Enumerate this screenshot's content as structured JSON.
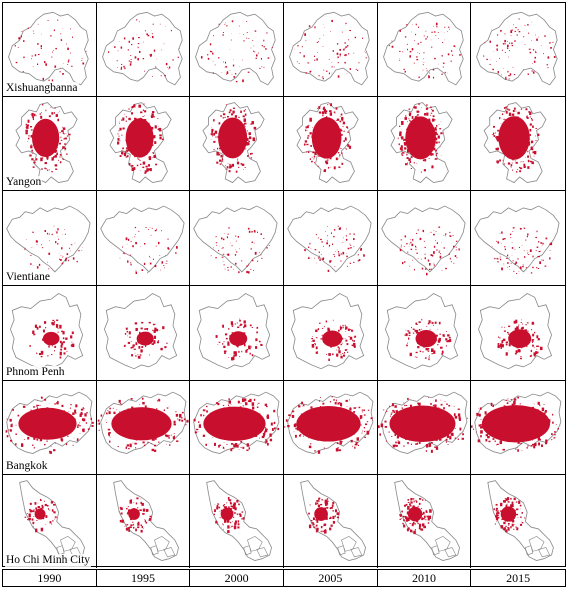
{
  "years": [
    "1990",
    "1995",
    "2000",
    "2005",
    "2010",
    "2015"
  ],
  "cities": [
    {
      "name": "Xishuangbanna",
      "boundary": "xishuangbanna-outline",
      "urban_level": [
        0.12,
        0.15,
        0.18,
        0.22,
        0.27,
        0.32
      ]
    },
    {
      "name": "Yangon",
      "boundary": "yangon-outline",
      "urban_level": [
        0.55,
        0.58,
        0.62,
        0.64,
        0.68,
        0.7
      ]
    },
    {
      "name": "Vientiane",
      "boundary": "vientiane-outline",
      "urban_level": [
        0.1,
        0.12,
        0.16,
        0.22,
        0.28,
        0.34
      ]
    },
    {
      "name": "Phnom Penh",
      "boundary": "phnom-penh-outline",
      "urban_level": [
        0.14,
        0.16,
        0.2,
        0.28,
        0.32,
        0.38
      ]
    },
    {
      "name": "Bangkok",
      "boundary": "bangkok-outline",
      "urban_level": [
        0.62,
        0.66,
        0.7,
        0.74,
        0.77,
        0.8
      ]
    },
    {
      "name": "Ho Chi Minh City",
      "boundary": "ho-chi-minh-city-outline",
      "urban_level": [
        0.1,
        0.14,
        0.2,
        0.26,
        0.3,
        0.34
      ]
    }
  ],
  "colors": {
    "urban": "#c8102e",
    "boundary": "#8c8c8c",
    "grid": "#000000"
  }
}
